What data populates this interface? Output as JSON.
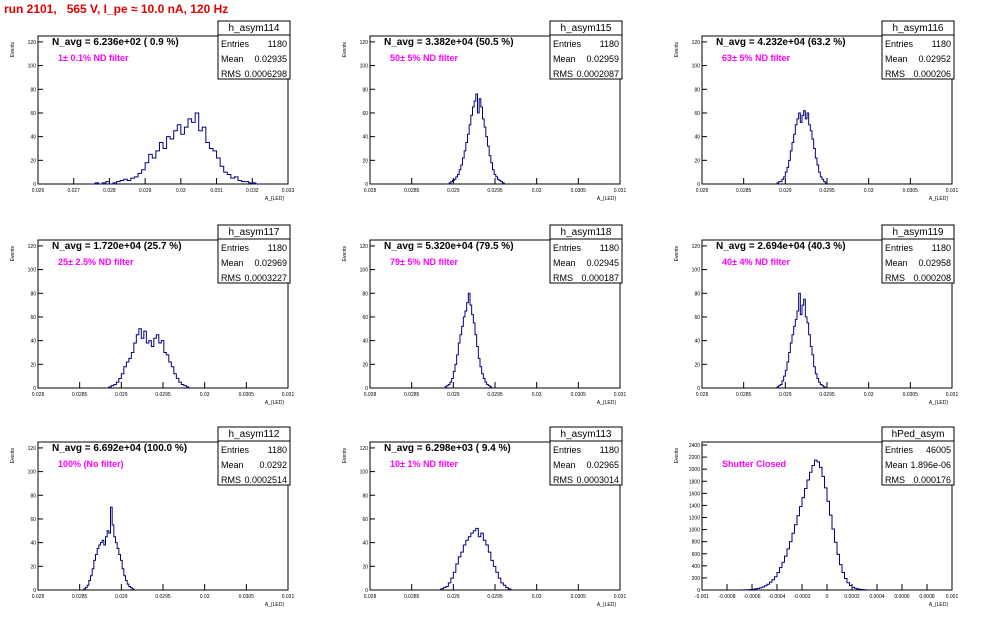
{
  "title": "run 2101,   565 V, I_pe ≈ 10.0 nA, 120 Hz",
  "colors": {
    "title": "#e00000",
    "line": "#000080",
    "filter_label": "#ff00ff",
    "box": "#000000"
  },
  "stats_labels": {
    "entries": "Entries",
    "mean": "Mean",
    "rms": "RMS"
  },
  "ylabel": "Events",
  "xlabel": "A_{LED}",
  "chart_data": [
    {
      "type": "histogram",
      "name": "h_asym114",
      "header": "N_avg = 6.236e+02 ( 0.9 %)",
      "filter": "1± 0.1% ND filter",
      "stats": {
        "entries": "1180",
        "mean": "0.02935",
        "rms": "0.0006298"
      },
      "xlim": [
        0.026,
        0.033
      ],
      "ylim": [
        0,
        125
      ],
      "xticks": [
        "0.026",
        "0.027",
        "0.028",
        "0.029",
        "0.03",
        "0.031",
        "0.032",
        "0.033"
      ],
      "yticks": [
        "0",
        "20",
        "40",
        "60",
        "80",
        "100",
        "120"
      ],
      "ytick_values": [
        0,
        20,
        40,
        60,
        80,
        100,
        120
      ],
      "bins": {
        "x0": 0.0275,
        "width": 0.0001,
        "values": [
          0,
          1,
          0,
          1,
          2,
          0,
          1,
          2,
          3,
          4,
          3,
          5,
          6,
          9,
          12,
          18,
          25,
          22,
          28,
          35,
          30,
          40,
          38,
          45,
          50,
          42,
          48,
          55,
          52,
          60,
          45,
          48,
          35,
          30,
          28,
          22,
          15,
          10,
          8,
          5,
          6,
          3,
          2,
          2,
          1,
          1,
          0
        ]
      }
    },
    {
      "type": "histogram",
      "name": "h_asym115",
      "header": "N_avg = 3.382e+04 (50.5 %)",
      "filter": "50± 5% ND filter",
      "stats": {
        "entries": "1180",
        "mean": "0.02959",
        "rms": "0.0002087"
      },
      "xlim": [
        0.028,
        0.031
      ],
      "ylim": [
        0,
        125
      ],
      "xticks": [
        "0.028",
        "0.0285",
        "0.029",
        "0.0295",
        "0.03",
        "0.0305",
        "0.031"
      ],
      "yticks": [
        "0",
        "20",
        "40",
        "60",
        "80",
        "100",
        "120"
      ],
      "ytick_values": [
        0,
        20,
        40,
        60,
        80,
        100,
        120
      ],
      "bins": {
        "x0": 0.02895,
        "width": 2e-05,
        "values": [
          1,
          2,
          3,
          4,
          6,
          8,
          12,
          16,
          22,
          28,
          35,
          42,
          50,
          58,
          65,
          70,
          76,
          60,
          72,
          65,
          55,
          48,
          40,
          32,
          24,
          18,
          12,
          8,
          6,
          4,
          3,
          2,
          1
        ]
      }
    },
    {
      "type": "histogram",
      "name": "h_asym116",
      "header": "N_avg = 4.232e+04 (63.2 %)",
      "filter": "63± 5% ND filter",
      "stats": {
        "entries": "1180",
        "mean": "0.02952",
        "rms": "0.000206"
      },
      "xlim": [
        0.028,
        0.031
      ],
      "ylim": [
        0,
        125
      ],
      "xticks": [
        "0.028",
        "0.0285",
        "0.029",
        "0.0295",
        "0.03",
        "0.0305",
        "0.031"
      ],
      "yticks": [
        "0",
        "20",
        "40",
        "60",
        "80",
        "100",
        "120"
      ],
      "ytick_values": [
        0,
        20,
        40,
        60,
        80,
        100,
        120
      ],
      "bins": {
        "x0": 0.0289,
        "width": 2e-05,
        "values": [
          1,
          2,
          2,
          4,
          6,
          10,
          14,
          20,
          28,
          35,
          42,
          50,
          55,
          60,
          52,
          58,
          62,
          55,
          60,
          50,
          45,
          38,
          30,
          22,
          16,
          10,
          6,
          4,
          2,
          1
        ]
      }
    },
    {
      "type": "histogram",
      "name": "h_asym117",
      "header": "N_avg = 1.720e+04 (25.7 %)",
      "filter": "25± 2.5% ND filter",
      "stats": {
        "entries": "1180",
        "mean": "0.02969",
        "rms": "0.0003227"
      },
      "xlim": [
        0.028,
        0.031
      ],
      "ylim": [
        0,
        125
      ],
      "xticks": [
        "0.028",
        "0.0285",
        "0.029",
        "0.0295",
        "0.03",
        "0.0305",
        "0.031"
      ],
      "yticks": [
        "0",
        "20",
        "40",
        "60",
        "80",
        "100",
        "120"
      ],
      "ytick_values": [
        0,
        20,
        40,
        60,
        80,
        100,
        120
      ],
      "bins": {
        "x0": 0.02885,
        "width": 3e-05,
        "values": [
          1,
          2,
          3,
          5,
          8,
          12,
          18,
          22,
          25,
          30,
          38,
          45,
          50,
          42,
          48,
          38,
          40,
          35,
          42,
          45,
          38,
          40,
          30,
          28,
          22,
          18,
          12,
          8,
          5,
          3,
          2,
          1
        ]
      }
    },
    {
      "type": "histogram",
      "name": "h_asym118",
      "header": "N_avg = 5.320e+04 (79.5 %)",
      "filter": "79± 5% ND filter",
      "stats": {
        "entries": "1180",
        "mean": "0.02945",
        "rms": "0.000187"
      },
      "xlim": [
        0.028,
        0.031
      ],
      "ylim": [
        0,
        125
      ],
      "xticks": [
        "0.028",
        "0.0285",
        "0.029",
        "0.0295",
        "0.03",
        "0.0305",
        "0.031"
      ],
      "yticks": [
        "0",
        "20",
        "40",
        "60",
        "80",
        "100",
        "120"
      ],
      "ytick_values": [
        0,
        20,
        40,
        60,
        80,
        100,
        120
      ],
      "bins": {
        "x0": 0.0289,
        "width": 2e-05,
        "values": [
          1,
          2,
          3,
          5,
          8,
          14,
          20,
          28,
          38,
          45,
          52,
          60,
          65,
          72,
          80,
          70,
          62,
          55,
          45,
          35,
          25,
          18,
          12,
          8,
          5,
          3,
          2,
          1
        ]
      }
    },
    {
      "type": "histogram",
      "name": "h_asym119",
      "header": "N_avg = 2.694e+04 (40.3 %)",
      "filter": "40± 4% ND filter",
      "stats": {
        "entries": "1180",
        "mean": "0.02958",
        "rms": "0.000208"
      },
      "xlim": [
        0.028,
        0.031
      ],
      "ylim": [
        0,
        125
      ],
      "xticks": [
        "0.028",
        "0.0285",
        "0.029",
        "0.0295",
        "0.03",
        "0.0305",
        "0.031"
      ],
      "yticks": [
        "0",
        "20",
        "40",
        "60",
        "80",
        "100",
        "120"
      ],
      "ytick_values": [
        0,
        20,
        40,
        60,
        80,
        100,
        120
      ],
      "bins": {
        "x0": 0.0289,
        "width": 2e-05,
        "values": [
          1,
          2,
          3,
          6,
          10,
          15,
          22,
          30,
          38,
          45,
          52,
          58,
          65,
          80,
          62,
          70,
          75,
          60,
          55,
          45,
          35,
          28,
          18,
          12,
          8,
          5,
          3,
          2,
          1
        ]
      }
    },
    {
      "type": "histogram",
      "name": "h_asym112",
      "header": "N_avg = 6.692e+04 (100.0 %)",
      "filter": "100% (No filter)",
      "stats": {
        "entries": "1180",
        "mean": "0.0292",
        "rms": "0.0002514"
      },
      "xlim": [
        0.028,
        0.031
      ],
      "ylim": [
        0,
        125
      ],
      "xticks": [
        "0.028",
        "0.0285",
        "0.029",
        "0.0295",
        "0.03",
        "0.0305",
        "0.031"
      ],
      "yticks": [
        "0",
        "20",
        "40",
        "60",
        "80",
        "100",
        "120"
      ],
      "ytick_values": [
        0,
        20,
        40,
        60,
        80,
        100,
        120
      ],
      "bins": {
        "x0": 0.02855,
        "width": 2e-05,
        "values": [
          1,
          2,
          4,
          8,
          12,
          18,
          25,
          30,
          35,
          38,
          40,
          42,
          38,
          45,
          50,
          48,
          70,
          55,
          45,
          40,
          35,
          30,
          25,
          18,
          12,
          8,
          5,
          3,
          2,
          1
        ]
      }
    },
    {
      "type": "histogram",
      "name": "h_asym113",
      "header": "N_avg = 6.298e+03 ( 9.4 %)",
      "filter": "10± 1% ND filter",
      "stats": {
        "entries": "1180",
        "mean": "0.02965",
        "rms": "0.0003014"
      },
      "xlim": [
        0.028,
        0.031
      ],
      "ylim": [
        0,
        125
      ],
      "xticks": [
        "0.028",
        "0.0285",
        "0.029",
        "0.0295",
        "0.03",
        "0.0305",
        "0.031"
      ],
      "yticks": [
        "0",
        "20",
        "40",
        "60",
        "80",
        "100",
        "120"
      ],
      "ytick_values": [
        0,
        20,
        40,
        60,
        80,
        100,
        120
      ],
      "bins": {
        "x0": 0.02885,
        "width": 3e-05,
        "values": [
          1,
          2,
          3,
          6,
          10,
          15,
          22,
          28,
          32,
          38,
          42,
          45,
          48,
          50,
          52,
          45,
          48,
          42,
          38,
          32,
          25,
          20,
          15,
          10,
          6,
          4,
          2,
          1
        ]
      }
    },
    {
      "type": "histogram",
      "name": "hPed_asym",
      "header": "",
      "filter": "Shutter Closed",
      "stats": {
        "entries": "46005",
        "mean": "1.896e-06",
        "rms": "0.000176"
      },
      "xlim": [
        -0.001,
        0.001
      ],
      "ylim": [
        0,
        2450
      ],
      "xticks": [
        "-0.001",
        "-0.0008",
        "-0.0006",
        "-0.0004",
        "-0.0002",
        "0",
        "0.0002",
        "0.0004",
        "0.0006",
        "0.0008",
        "0.001"
      ],
      "yticks": [
        "0",
        "200",
        "400",
        "600",
        "800",
        "1000",
        "1200",
        "1400",
        "1600",
        "1800",
        "2000",
        "2200",
        "2400"
      ],
      "ytick_values": [
        0,
        200,
        400,
        600,
        800,
        1000,
        1200,
        1400,
        1600,
        1800,
        2000,
        2200,
        2400
      ],
      "bins": {
        "x0": -0.00068,
        "width": 2e-05,
        "values": [
          2,
          3,
          5,
          8,
          12,
          18,
          25,
          35,
          50,
          70,
          95,
          130,
          170,
          220,
          290,
          370,
          460,
          560,
          680,
          800,
          940,
          1080,
          1230,
          1380,
          1530,
          1680,
          1820,
          1950,
          2060,
          2150,
          2120,
          2030,
          1880,
          1690,
          1470,
          1240,
          1010,
          790,
          590,
          420,
          290,
          190,
          120,
          75,
          45,
          28,
          16,
          10,
          6,
          3
        ]
      }
    }
  ]
}
